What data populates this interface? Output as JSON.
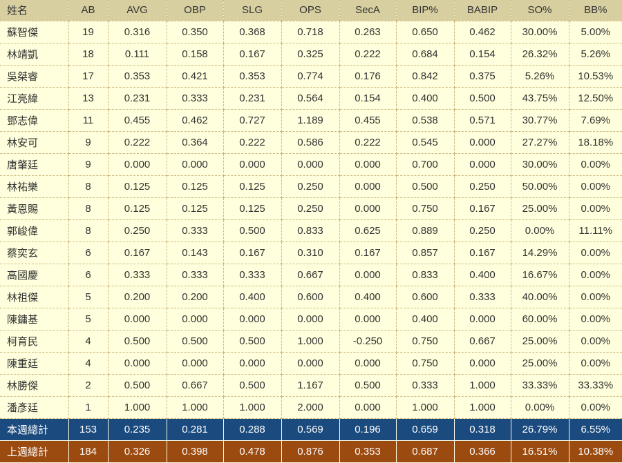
{
  "chart_data": {
    "type": "table",
    "columns": [
      "姓名",
      "AB",
      "AVG",
      "OBP",
      "SLG",
      "OPS",
      "SecA",
      "BIP%",
      "BABIP",
      "SO%",
      "BB%"
    ],
    "rows": [
      [
        "蘇智傑",
        "19",
        "0.316",
        "0.350",
        "0.368",
        "0.718",
        "0.263",
        "0.650",
        "0.462",
        "30.00%",
        "5.00%"
      ],
      [
        "林靖凱",
        "18",
        "0.111",
        "0.158",
        "0.167",
        "0.325",
        "0.222",
        "0.684",
        "0.154",
        "26.32%",
        "5.26%"
      ],
      [
        "吳桀睿",
        "17",
        "0.353",
        "0.421",
        "0.353",
        "0.774",
        "0.176",
        "0.842",
        "0.375",
        "5.26%",
        "10.53%"
      ],
      [
        "江亮緯",
        "13",
        "0.231",
        "0.333",
        "0.231",
        "0.564",
        "0.154",
        "0.400",
        "0.500",
        "43.75%",
        "12.50%"
      ],
      [
        "鄧志偉",
        "11",
        "0.455",
        "0.462",
        "0.727",
        "1.189",
        "0.455",
        "0.538",
        "0.571",
        "30.77%",
        "7.69%"
      ],
      [
        "林安可",
        "9",
        "0.222",
        "0.364",
        "0.222",
        "0.586",
        "0.222",
        "0.545",
        "0.000",
        "27.27%",
        "18.18%"
      ],
      [
        "唐肇廷",
        "9",
        "0.000",
        "0.000",
        "0.000",
        "0.000",
        "0.000",
        "0.700",
        "0.000",
        "30.00%",
        "0.00%"
      ],
      [
        "林祐樂",
        "8",
        "0.125",
        "0.125",
        "0.125",
        "0.250",
        "0.000",
        "0.500",
        "0.250",
        "50.00%",
        "0.00%"
      ],
      [
        "黃恩賜",
        "8",
        "0.125",
        "0.125",
        "0.125",
        "0.250",
        "0.000",
        "0.750",
        "0.167",
        "25.00%",
        "0.00%"
      ],
      [
        "郭峻偉",
        "8",
        "0.250",
        "0.333",
        "0.500",
        "0.833",
        "0.625",
        "0.889",
        "0.250",
        "0.00%",
        "11.11%"
      ],
      [
        "蔡奕玄",
        "6",
        "0.167",
        "0.143",
        "0.167",
        "0.310",
        "0.167",
        "0.857",
        "0.167",
        "14.29%",
        "0.00%"
      ],
      [
        "高國慶",
        "6",
        "0.333",
        "0.333",
        "0.333",
        "0.667",
        "0.000",
        "0.833",
        "0.400",
        "16.67%",
        "0.00%"
      ],
      [
        "林祖傑",
        "5",
        "0.200",
        "0.200",
        "0.400",
        "0.600",
        "0.400",
        "0.600",
        "0.333",
        "40.00%",
        "0.00%"
      ],
      [
        "陳鏞基",
        "5",
        "0.000",
        "0.000",
        "0.000",
        "0.000",
        "0.000",
        "0.400",
        "0.000",
        "60.00%",
        "0.00%"
      ],
      [
        "柯育民",
        "4",
        "0.500",
        "0.500",
        "0.500",
        "1.000",
        "-0.250",
        "0.750",
        "0.667",
        "25.00%",
        "0.00%"
      ],
      [
        "陳重廷",
        "4",
        "0.000",
        "0.000",
        "0.000",
        "0.000",
        "0.000",
        "0.750",
        "0.000",
        "25.00%",
        "0.00%"
      ],
      [
        "林勝傑",
        "2",
        "0.500",
        "0.667",
        "0.500",
        "1.167",
        "0.500",
        "0.333",
        "1.000",
        "33.33%",
        "33.33%"
      ],
      [
        "潘彥廷",
        "1",
        "1.000",
        "1.000",
        "1.000",
        "2.000",
        "0.000",
        "1.000",
        "1.000",
        "0.00%",
        "0.00%"
      ]
    ],
    "totals": [
      {
        "label": "本週總計",
        "values": [
          "153",
          "0.235",
          "0.281",
          "0.288",
          "0.569",
          "0.196",
          "0.659",
          "0.318",
          "26.79%",
          "6.55%"
        ]
      },
      {
        "label": "上週總計",
        "values": [
          "184",
          "0.326",
          "0.398",
          "0.478",
          "0.876",
          "0.353",
          "0.687",
          "0.366",
          "16.51%",
          "10.38%"
        ]
      }
    ]
  },
  "colors": {
    "header_bg": "#d7cfa0",
    "row_bg": "#ffffdd",
    "grid": "#ccb87f",
    "text": "#333333",
    "total_text": "#ffffff",
    "total_this_week_bg": "#1b4b7e",
    "total_last_week_bg": "#9b4a10"
  }
}
